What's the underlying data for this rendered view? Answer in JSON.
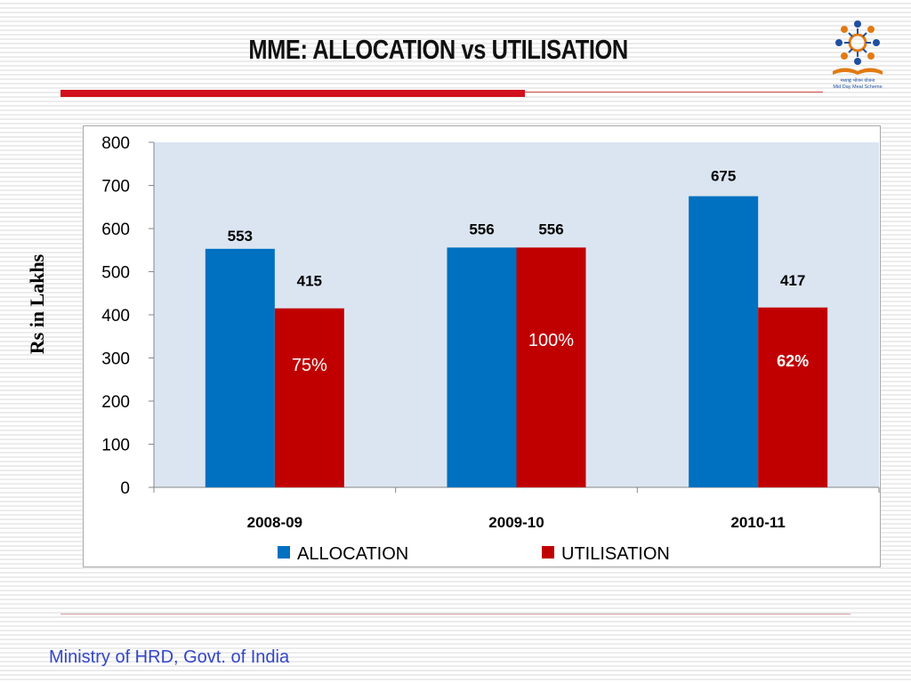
{
  "slide": {
    "title": "MME: ALLOCATION vs UTILISATION",
    "footer": "Ministry of HRD, Govt. of India",
    "logo_caption_hindi": "मध्याह्न भोजन योजना",
    "logo_caption_english": "Mid Day Meal Scheme"
  },
  "colors": {
    "allocation": "#0070c0",
    "utilisation": "#c00000",
    "plot_background": "#dbe5f1",
    "accent_red": "#d0101c",
    "footer_text": "#3346c8"
  },
  "chart_data": {
    "type": "bar",
    "title": "",
    "xlabel": "",
    "ylabel": "Rs in Lakhs",
    "ylim": [
      0,
      800
    ],
    "yticks": [
      0,
      100,
      200,
      300,
      400,
      500,
      600,
      700,
      800
    ],
    "categories": [
      "2008-09",
      "2009-10",
      "2010-11"
    ],
    "series": [
      {
        "name": "ALLOCATION",
        "values": [
          553,
          556,
          675
        ],
        "color": "#0070c0"
      },
      {
        "name": "UTILISATION",
        "values": [
          415,
          556,
          417
        ],
        "color": "#c00000"
      }
    ],
    "annotations": [
      "75%",
      "100%",
      "62%"
    ],
    "grid": false,
    "legend": "bottom"
  }
}
